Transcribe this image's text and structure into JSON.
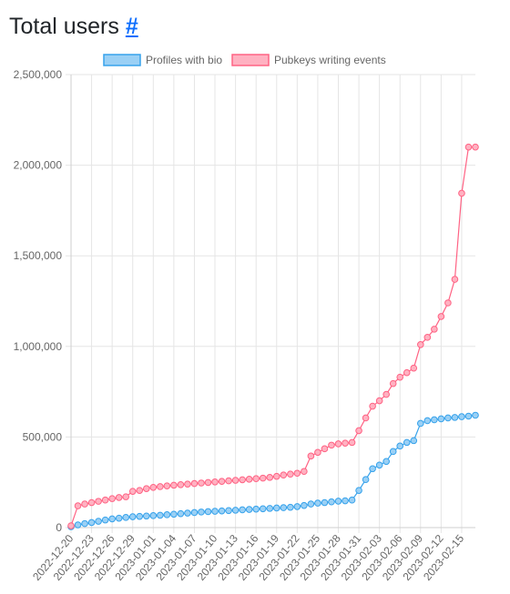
{
  "heading": {
    "text": "Total users",
    "anchor": "#"
  },
  "chart_data": {
    "type": "line",
    "ylim": [
      0,
      2500000
    ],
    "yticks": [
      0,
      500000,
      1000000,
      1500000,
      2000000,
      2500000
    ],
    "ytick_labels": [
      "0",
      "500,000",
      "1,000,000",
      "1,500,000",
      "2,000,000",
      "2,500,000"
    ],
    "xtick_labels": [
      "2022-12-20",
      "2022-12-23",
      "2022-12-26",
      "2022-12-29",
      "2023-01-01",
      "2023-01-04",
      "2023-01-07",
      "2023-01-10",
      "2023-01-13",
      "2023-01-16",
      "2023-01-19",
      "2023-01-22",
      "2023-01-25",
      "2023-01-28",
      "2023-01-31",
      "2023-02-03",
      "2023-02-06",
      "2023-02-09",
      "2023-02-12",
      "2023-02-15"
    ],
    "x": [
      "2022-12-20",
      "2022-12-21",
      "2022-12-22",
      "2022-12-23",
      "2022-12-24",
      "2022-12-25",
      "2022-12-26",
      "2022-12-27",
      "2022-12-28",
      "2022-12-29",
      "2022-12-30",
      "2022-12-31",
      "2023-01-01",
      "2023-01-02",
      "2023-01-03",
      "2023-01-04",
      "2023-01-05",
      "2023-01-06",
      "2023-01-07",
      "2023-01-08",
      "2023-01-09",
      "2023-01-10",
      "2023-01-11",
      "2023-01-12",
      "2023-01-13",
      "2023-01-14",
      "2023-01-15",
      "2023-01-16",
      "2023-01-17",
      "2023-01-18",
      "2023-01-19",
      "2023-01-20",
      "2023-01-21",
      "2023-01-22",
      "2023-01-23",
      "2023-01-24",
      "2023-01-25",
      "2023-01-26",
      "2023-01-27",
      "2023-01-28",
      "2023-01-29",
      "2023-01-30",
      "2023-01-31",
      "2023-02-01",
      "2023-02-02",
      "2023-02-03",
      "2023-02-04",
      "2023-02-05",
      "2023-02-06",
      "2023-02-07",
      "2023-02-08",
      "2023-02-09",
      "2023-02-10",
      "2023-02-11",
      "2023-02-12",
      "2023-02-13",
      "2023-02-14",
      "2023-02-15",
      "2023-02-16",
      "2023-02-17"
    ],
    "legend_position": "top-center",
    "grid": true,
    "series": [
      {
        "name": "Profiles with bio",
        "color": "#36a2eb",
        "fill": "#9ad0f5",
        "values": [
          5000,
          15000,
          22000,
          28000,
          35000,
          42000,
          48000,
          52000,
          56000,
          60000,
          62000,
          64000,
          66000,
          68000,
          71000,
          74000,
          77000,
          80000,
          83000,
          86000,
          88000,
          90000,
          92000,
          94000,
          96000,
          98000,
          100000,
          102000,
          104000,
          106000,
          108000,
          110000,
          112000,
          116000,
          122000,
          130000,
          135000,
          138000,
          142000,
          146000,
          148000,
          152000,
          205000,
          265000,
          325000,
          345000,
          365000,
          420000,
          450000,
          470000,
          480000,
          575000,
          590000,
          595000,
          600000,
          605000,
          608000,
          612000,
          615000,
          620000
        ]
      },
      {
        "name": "Pubkeys writing events",
        "color": "#ff6384",
        "fill": "#ffb1c1",
        "values": [
          10000,
          120000,
          130000,
          138000,
          145000,
          152000,
          160000,
          166000,
          170000,
          200000,
          205000,
          215000,
          222000,
          226000,
          230000,
          234000,
          237000,
          240000,
          243000,
          246000,
          249000,
          252000,
          255000,
          258000,
          261000,
          264000,
          267000,
          270000,
          273000,
          277000,
          283000,
          290000,
          295000,
          300000,
          310000,
          395000,
          415000,
          435000,
          455000,
          462000,
          466000,
          470000,
          535000,
          605000,
          670000,
          700000,
          735000,
          795000,
          830000,
          855000,
          880000,
          1010000,
          1050000,
          1095000,
          1165000,
          1240000,
          1370000,
          1845000,
          2100000,
          2100000
        ]
      }
    ]
  }
}
